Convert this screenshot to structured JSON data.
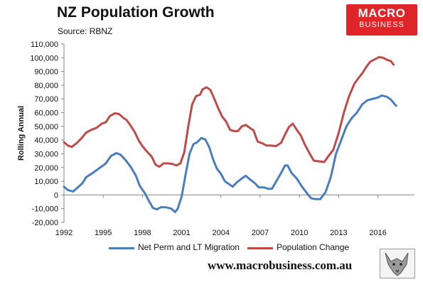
{
  "header": {
    "title": "NZ Population Growth",
    "source": "Source: RBNZ"
  },
  "logo": {
    "line1": "MACRO",
    "line2": "BUSINESS"
  },
  "footer": {
    "website": "www.macrobusiness.com.au"
  },
  "colors": {
    "migration": "#4a7ebb",
    "population": "#be4b48",
    "brand": "#e02528"
  },
  "chart_data": {
    "type": "line",
    "title": "NZ Population Growth",
    "ylabel": "Rolling Annual",
    "xlabel": "",
    "xlim": [
      1992,
      2018.8
    ],
    "ylim": [
      -20000,
      110000
    ],
    "yticks": [
      -20000,
      -10000,
      0,
      10000,
      20000,
      30000,
      40000,
      50000,
      60000,
      70000,
      80000,
      90000,
      100000,
      110000
    ],
    "ytick_labels": [
      "-20,000",
      "-10,000",
      "0",
      "10,000",
      "20,000",
      "30,000",
      "40,000",
      "50,000",
      "60,000",
      "70,000",
      "80,000",
      "90,000",
      "100,000",
      "110,000"
    ],
    "xticks": [
      1992,
      1995,
      1998,
      2001,
      2004,
      2007,
      2010,
      2013,
      2016
    ],
    "xtick_labels": [
      "1992",
      "1995",
      "1998",
      "2001",
      "2004",
      "2007",
      "2010",
      "2013",
      "2016"
    ],
    "grid": false,
    "legend": "bottom",
    "series": [
      {
        "name": "Net Perm and LT Migration",
        "color": "#4a7ebb",
        "points": [
          [
            1992.0,
            6000
          ],
          [
            1992.3,
            3500
          ],
          [
            1992.7,
            2500
          ],
          [
            1993.0,
            5000
          ],
          [
            1993.4,
            8500
          ],
          [
            1993.7,
            13000
          ],
          [
            1994.2,
            16000
          ],
          [
            1994.7,
            19500
          ],
          [
            1995.2,
            23000
          ],
          [
            1995.6,
            28500
          ],
          [
            1996.0,
            30500
          ],
          [
            1996.3,
            29500
          ],
          [
            1996.7,
            25500
          ],
          [
            1997.1,
            20500
          ],
          [
            1997.5,
            14000
          ],
          [
            1997.8,
            6500
          ],
          [
            1998.2,
            1000
          ],
          [
            1998.5,
            -4500
          ],
          [
            1998.8,
            -9500
          ],
          [
            1999.1,
            -10500
          ],
          [
            1999.4,
            -9000
          ],
          [
            1999.8,
            -9000
          ],
          [
            2000.2,
            -10000
          ],
          [
            2000.5,
            -12500
          ],
          [
            2000.7,
            -10000
          ],
          [
            2001.0,
            -1000
          ],
          [
            2001.3,
            15000
          ],
          [
            2001.6,
            30000
          ],
          [
            2001.9,
            37000
          ],
          [
            2002.2,
            38500
          ],
          [
            2002.5,
            41500
          ],
          [
            2002.8,
            40500
          ],
          [
            2003.1,
            35000
          ],
          [
            2003.4,
            26000
          ],
          [
            2003.7,
            19000
          ],
          [
            2004.0,
            15500
          ],
          [
            2004.3,
            10000
          ],
          [
            2004.6,
            8000
          ],
          [
            2004.9,
            6000
          ],
          [
            2005.2,
            9000
          ],
          [
            2005.6,
            12000
          ],
          [
            2005.9,
            14000
          ],
          [
            2006.2,
            11500
          ],
          [
            2006.6,
            8500
          ],
          [
            2006.9,
            5500
          ],
          [
            2007.3,
            5500
          ],
          [
            2007.6,
            4500
          ],
          [
            2007.9,
            4500
          ],
          [
            2008.3,
            11000
          ],
          [
            2008.6,
            16000
          ],
          [
            2008.9,
            21500
          ],
          [
            2009.1,
            21500
          ],
          [
            2009.4,
            16000
          ],
          [
            2009.8,
            12000
          ],
          [
            2010.2,
            6000
          ],
          [
            2010.6,
            1000
          ],
          [
            2010.9,
            -2500
          ],
          [
            2011.2,
            -3000
          ],
          [
            2011.6,
            -3000
          ],
          [
            2012.0,
            2000
          ],
          [
            2012.4,
            13000
          ],
          [
            2012.8,
            30000
          ],
          [
            2013.2,
            40000
          ],
          [
            2013.6,
            50000
          ],
          [
            2014.0,
            56000
          ],
          [
            2014.4,
            60000
          ],
          [
            2014.8,
            66000
          ],
          [
            2015.2,
            69000
          ],
          [
            2015.6,
            70000
          ],
          [
            2016.0,
            71000
          ],
          [
            2016.3,
            72500
          ],
          [
            2016.7,
            71500
          ],
          [
            2017.0,
            69500
          ],
          [
            2017.3,
            66000
          ],
          [
            2017.4,
            65000
          ]
        ]
      },
      {
        "name": "Population Change",
        "color": "#be4b48",
        "points": [
          [
            1992.0,
            38500
          ],
          [
            1992.3,
            36000
          ],
          [
            1992.6,
            35000
          ],
          [
            1993.0,
            38000
          ],
          [
            1993.4,
            42000
          ],
          [
            1993.7,
            45500
          ],
          [
            1994.1,
            47500
          ],
          [
            1994.5,
            49000
          ],
          [
            1994.9,
            52000
          ],
          [
            1995.2,
            53000
          ],
          [
            1995.5,
            57500
          ],
          [
            1995.9,
            59500
          ],
          [
            1996.2,
            59000
          ],
          [
            1996.5,
            56500
          ],
          [
            1996.8,
            54500
          ],
          [
            1997.1,
            50500
          ],
          [
            1997.4,
            46000
          ],
          [
            1997.7,
            40000
          ],
          [
            1998.0,
            35500
          ],
          [
            1998.4,
            31000
          ],
          [
            1998.7,
            28000
          ],
          [
            1999.0,
            22000
          ],
          [
            1999.3,
            20500
          ],
          [
            1999.6,
            23000
          ],
          [
            2000.0,
            23000
          ],
          [
            2000.3,
            22500
          ],
          [
            2000.6,
            21500
          ],
          [
            2000.9,
            23000
          ],
          [
            2001.2,
            31000
          ],
          [
            2001.5,
            50000
          ],
          [
            2001.8,
            66000
          ],
          [
            2002.1,
            72000
          ],
          [
            2002.4,
            73000
          ],
          [
            2002.6,
            77000
          ],
          [
            2002.9,
            78500
          ],
          [
            2003.2,
            76500
          ],
          [
            2003.5,
            70000
          ],
          [
            2003.8,
            63000
          ],
          [
            2004.1,
            57000
          ],
          [
            2004.4,
            53500
          ],
          [
            2004.7,
            47500
          ],
          [
            2005.0,
            46500
          ],
          [
            2005.3,
            46500
          ],
          [
            2005.6,
            50000
          ],
          [
            2005.9,
            51000
          ],
          [
            2006.2,
            49000
          ],
          [
            2006.5,
            47000
          ],
          [
            2006.8,
            39000
          ],
          [
            2007.2,
            37500
          ],
          [
            2007.5,
            36000
          ],
          [
            2007.9,
            36000
          ],
          [
            2008.2,
            35500
          ],
          [
            2008.6,
            38000
          ],
          [
            2008.9,
            44000
          ],
          [
            2009.2,
            49500
          ],
          [
            2009.5,
            52000
          ],
          [
            2009.8,
            47500
          ],
          [
            2010.1,
            43500
          ],
          [
            2010.4,
            37000
          ],
          [
            2010.8,
            30000
          ],
          [
            2011.1,
            25000
          ],
          [
            2011.5,
            24500
          ],
          [
            2011.9,
            24000
          ],
          [
            2012.2,
            28000
          ],
          [
            2012.6,
            33000
          ],
          [
            2013.0,
            45000
          ],
          [
            2013.4,
            60000
          ],
          [
            2013.8,
            72000
          ],
          [
            2014.2,
            81000
          ],
          [
            2014.5,
            85000
          ],
          [
            2014.8,
            88500
          ],
          [
            2015.1,
            93000
          ],
          [
            2015.4,
            97000
          ],
          [
            2015.8,
            99000
          ],
          [
            2016.1,
            100500
          ],
          [
            2016.4,
            100000
          ],
          [
            2016.7,
            98500
          ],
          [
            2017.0,
            97500
          ],
          [
            2017.2,
            95000
          ]
        ]
      }
    ]
  }
}
